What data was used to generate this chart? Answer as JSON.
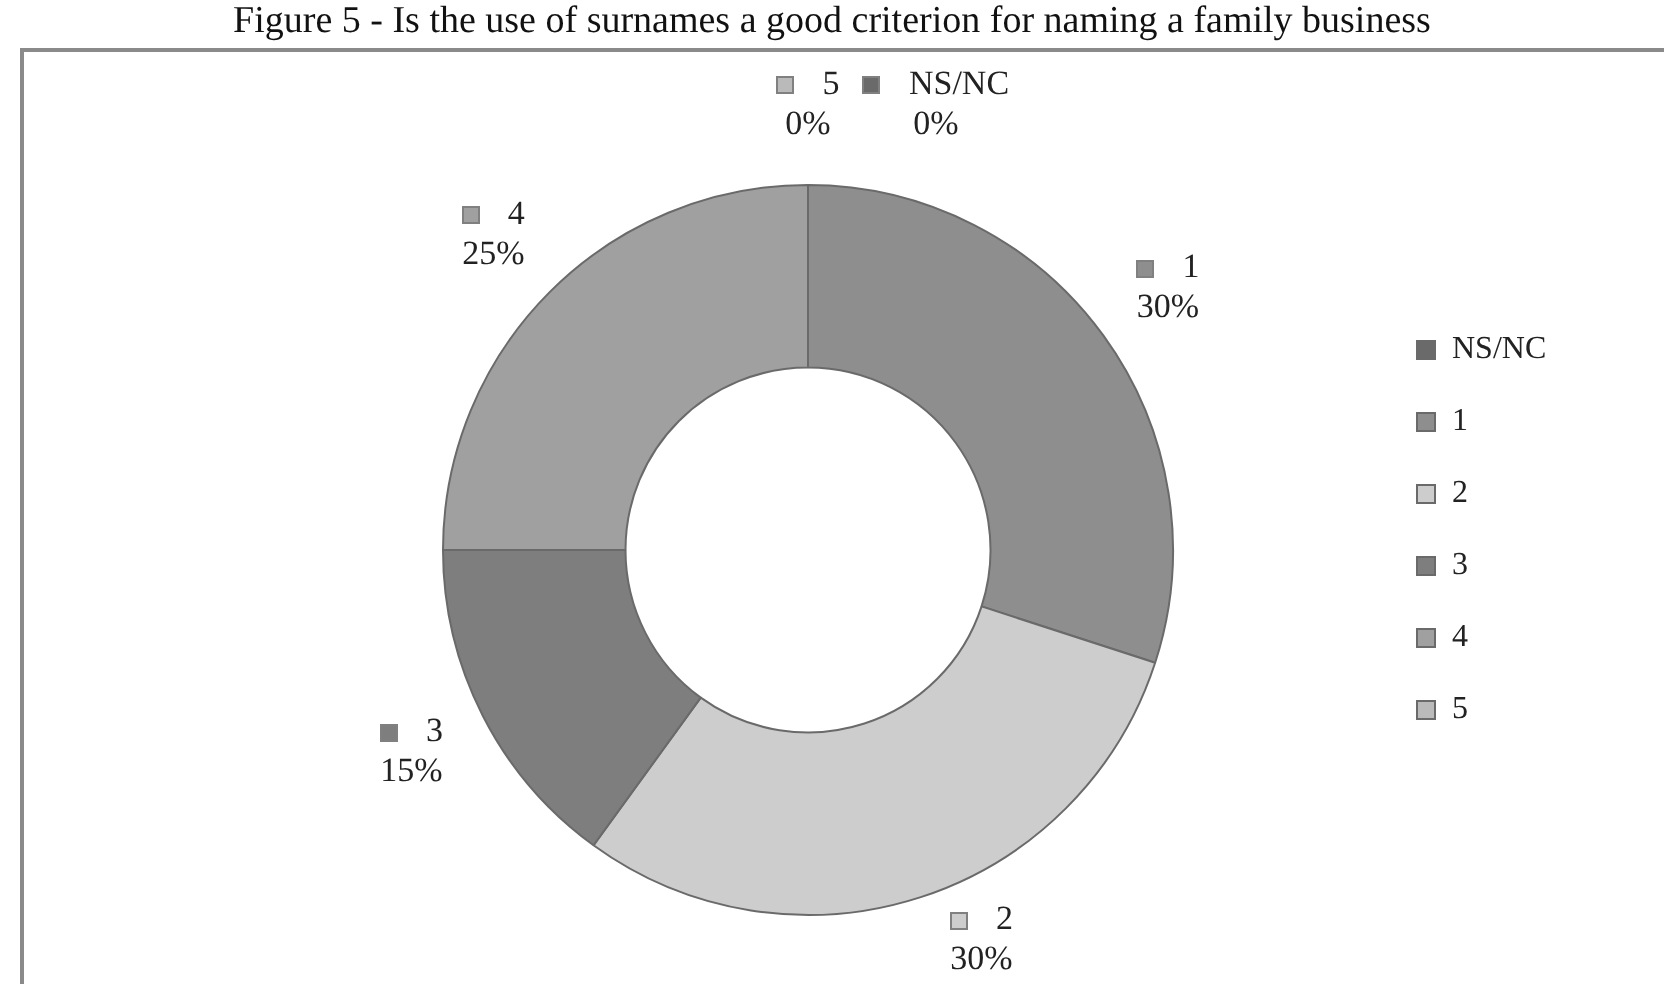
{
  "chart_data": {
    "type": "donut",
    "title": "Figure 5 - Is the use of surnames a good criterion for naming a family business",
    "categories": [
      "NS/NC",
      "1",
      "2",
      "3",
      "4",
      "5"
    ],
    "values": [
      0,
      30,
      30,
      15,
      25,
      0
    ],
    "colors": [
      "#6a6a6a",
      "#8e8e8e",
      "#cdcdcd",
      "#7e7e7e",
      "#a0a0a0",
      "#bababa"
    ],
    "value_labels": [
      "0%",
      "30%",
      "30%",
      "15%",
      "25%",
      "0%"
    ],
    "legend": "right"
  }
}
